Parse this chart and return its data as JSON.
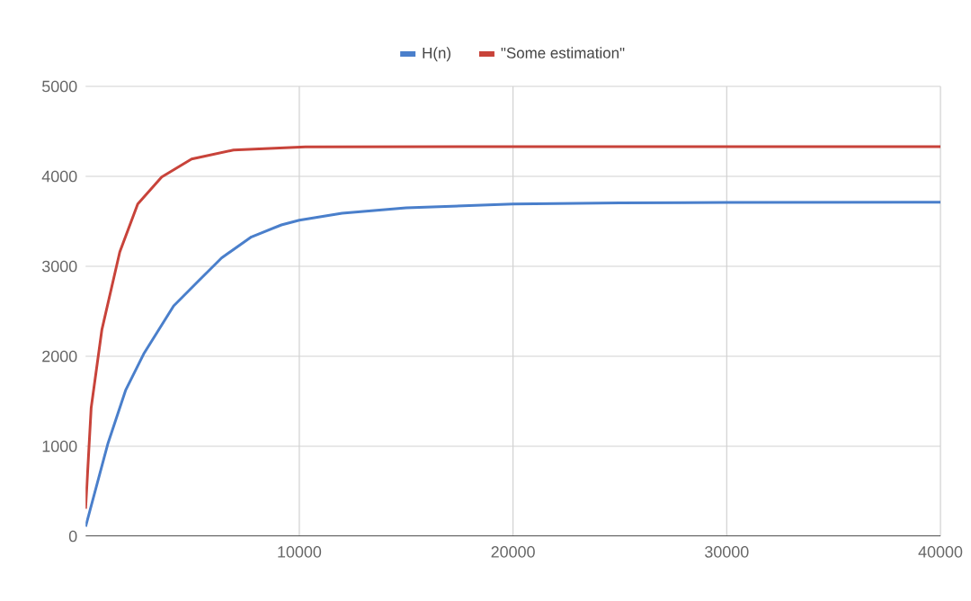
{
  "chart_data": {
    "type": "line",
    "xlim": [
      0,
      40000
    ],
    "xticks": [
      10000,
      20000,
      30000,
      40000
    ],
    "ylim": [
      0,
      5000
    ],
    "yticks": [
      0,
      1000,
      2000,
      3000,
      4000,
      5000
    ],
    "grid": true,
    "legend": "top",
    "marker": "none",
    "line_style": "solid",
    "series": [
      {
        "name": "H(n)",
        "color": "#4a7fcb",
        "x": [
          0,
          1040,
          1880,
          2720,
          4120,
          5240,
          6360,
          7760,
          9160,
          10000,
          12000,
          15000,
          20000,
          25000,
          30000,
          40000
        ],
        "values": [
          106,
          1027,
          1627,
          2027,
          2560,
          2827,
          3093,
          3327,
          3460,
          3513,
          3590,
          3650,
          3693,
          3705,
          3710,
          3713
        ]
      },
      {
        "name": "\"Some estimation\"",
        "color": "#c8433a",
        "x": [
          0,
          260,
          760,
          1600,
          2440,
          3560,
          4960,
          6920,
          10280,
          20000,
          30000,
          40000
        ],
        "values": [
          306,
          1426,
          2293,
          3160,
          3693,
          3993,
          4193,
          4293,
          4327,
          4330,
          4330,
          4330
        ]
      }
    ]
  }
}
